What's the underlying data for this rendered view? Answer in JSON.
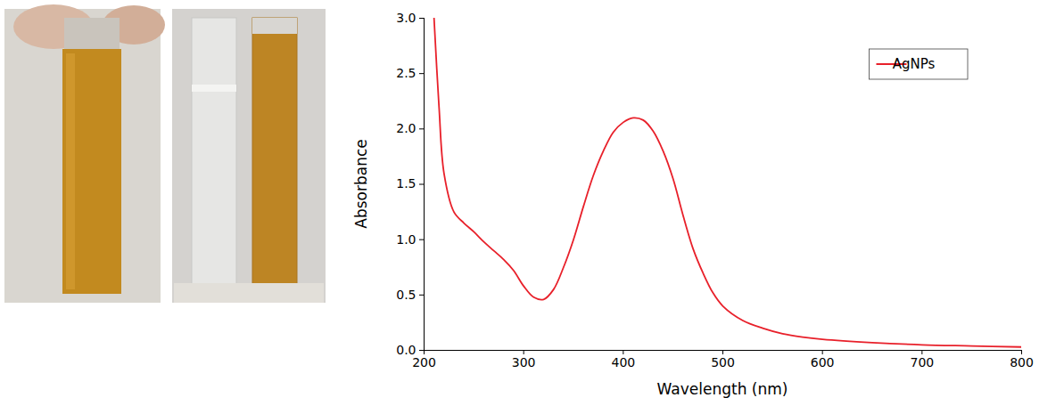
{
  "chart_data": {
    "type": "line",
    "xlabel": "Wavelength (nm)",
    "ylabel": "Absorbance",
    "xlim": [
      200,
      800
    ],
    "xticks": [
      200,
      300,
      400,
      500,
      600,
      700,
      800
    ],
    "ylim": [
      0,
      3
    ],
    "yticks": [
      {
        "value": 0,
        "label": "0.0"
      },
      0.5,
      {
        "value": 1,
        "label": "1.0"
      },
      1.5,
      {
        "value": 2,
        "label": "2.0"
      },
      2.5,
      {
        "value": 3,
        "label": "3.0"
      }
    ],
    "grid": false,
    "legend": "top-right",
    "x": [
      210,
      215,
      220,
      230,
      240,
      250,
      260,
      270,
      280,
      290,
      300,
      310,
      320,
      330,
      340,
      350,
      360,
      370,
      380,
      390,
      400,
      410,
      420,
      430,
      440,
      450,
      460,
      470,
      480,
      490,
      500,
      520,
      540,
      560,
      580,
      600,
      650,
      700,
      750,
      800
    ],
    "series": [
      {
        "name": "AgNPs",
        "color": "#e8202a",
        "values": [
          3.0,
          2.2,
          1.6,
          1.25,
          1.15,
          1.07,
          0.98,
          0.9,
          0.82,
          0.72,
          0.58,
          0.48,
          0.46,
          0.55,
          0.75,
          1.0,
          1.3,
          1.58,
          1.8,
          1.97,
          2.06,
          2.1,
          2.08,
          1.98,
          1.8,
          1.55,
          1.22,
          0.92,
          0.7,
          0.52,
          0.4,
          0.27,
          0.2,
          0.15,
          0.12,
          0.1,
          0.07,
          0.05,
          0.04,
          0.03
        ]
      }
    ]
  }
}
